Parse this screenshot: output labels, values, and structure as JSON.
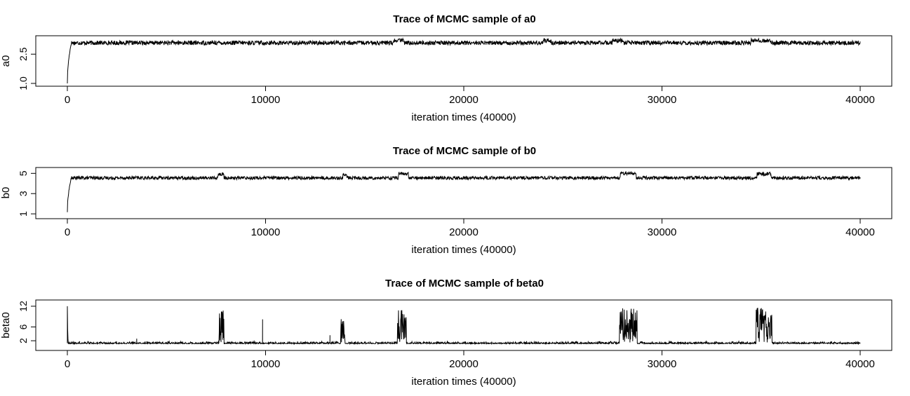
{
  "chart_data": [
    {
      "type": "line",
      "title": "Trace of MCMC sample of a0",
      "xlabel": "iteration times (40000)",
      "ylabel": "a0",
      "xlim": [
        0,
        40000
      ],
      "ylim": [
        1.0,
        3.3
      ],
      "xticks": [
        0,
        10000,
        20000,
        30000,
        40000
      ],
      "xtick_labels": [
        "0",
        "10000",
        "20000",
        "30000",
        "40000"
      ],
      "yticks": [
        1.0,
        2.5
      ],
      "ytick_labels": [
        "1.0",
        "2.5"
      ],
      "start_value": 1.0,
      "burnin_iter": 200,
      "baseline": 3.08,
      "noise": 0.11,
      "excursions": [
        {
          "start": 16500,
          "end": 17000,
          "value": 3.2
        },
        {
          "start": 24000,
          "end": 24400,
          "value": 3.2
        },
        {
          "start": 27500,
          "end": 28000,
          "value": 3.2
        },
        {
          "start": 34500,
          "end": 35500,
          "value": 3.2
        }
      ],
      "spikes": []
    },
    {
      "type": "line",
      "title": "Trace of MCMC sample of b0",
      "xlabel": "iteration times (40000)",
      "ylabel": "b0",
      "xlim": [
        0,
        40000
      ],
      "ylim": [
        0.8,
        5.3
      ],
      "xticks": [
        0,
        10000,
        20000,
        30000,
        40000
      ],
      "xtick_labels": [
        "0",
        "10000",
        "20000",
        "30000",
        "40000"
      ],
      "yticks": [
        1,
        3,
        5
      ],
      "ytick_labels": [
        "1",
        "3",
        "5"
      ],
      "start_value": 1.2,
      "burnin_iter": 200,
      "baseline": 4.55,
      "noise": 0.17,
      "excursions": [
        {
          "start": 7600,
          "end": 7900,
          "value": 4.9
        },
        {
          "start": 13900,
          "end": 14100,
          "value": 4.85
        },
        {
          "start": 16700,
          "end": 17200,
          "value": 4.95
        },
        {
          "start": 27900,
          "end": 28700,
          "value": 5.0
        },
        {
          "start": 34800,
          "end": 35500,
          "value": 4.95
        }
      ],
      "spikes": []
    },
    {
      "type": "line",
      "title": "Trace of MCMC sample of beta0",
      "xlabel": "iteration times (40000)",
      "ylabel": "beta0",
      "xlim": [
        0,
        40000
      ],
      "ylim": [
        0.0,
        13.0
      ],
      "xticks": [
        0,
        10000,
        20000,
        30000,
        40000
      ],
      "xtick_labels": [
        "0",
        "10000",
        "20000",
        "30000",
        "40000"
      ],
      "yticks": [
        2,
        6,
        12
      ],
      "ytick_labels": [
        "2",
        "6",
        "12"
      ],
      "start_value": 12.0,
      "burnin_iter": 40,
      "baseline": 1.3,
      "noise": 0.35,
      "excursions": [
        {
          "start": 7650,
          "end": 7900,
          "value": 8.0
        },
        {
          "start": 13800,
          "end": 14000,
          "value": 7.5
        },
        {
          "start": 16650,
          "end": 17100,
          "value": 8.5
        },
        {
          "start": 27850,
          "end": 28750,
          "value": 8.8
        },
        {
          "start": 34750,
          "end": 35550,
          "value": 8.6
        }
      ],
      "spikes": [
        {
          "x": 9850,
          "value": 8.2
        },
        {
          "x": 13250,
          "value": 3.6
        },
        {
          "x": 3500,
          "value": 2.6
        }
      ]
    }
  ]
}
